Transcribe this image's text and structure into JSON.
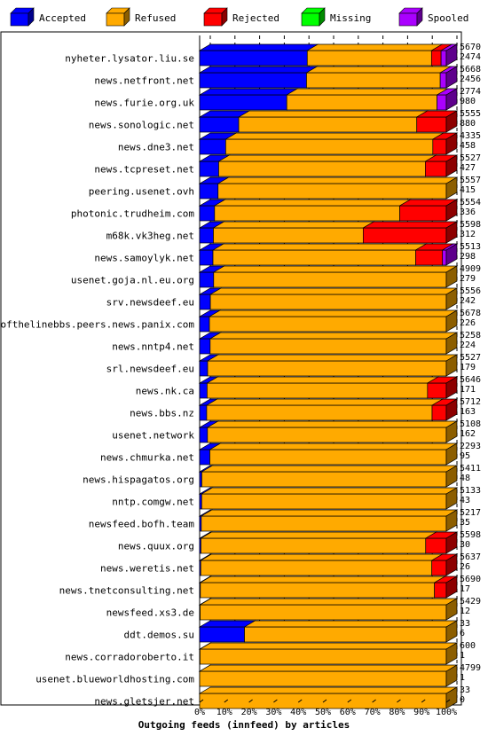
{
  "chart_data": {
    "type": "bar",
    "orientation": "horizontal",
    "stacked": true,
    "three_d": true,
    "xlabel": "Outgoing feeds (innfeed) by articles",
    "x_ticks": [
      "0%",
      "10%",
      "20%",
      "30%",
      "40%",
      "50%",
      "60%",
      "70%",
      "80%",
      "90%",
      "100%"
    ],
    "xlim": [
      0,
      100
    ],
    "legend_position": "top",
    "grid": "vertical dashed",
    "series": [
      {
        "name": "Accepted",
        "color": "#0000ff"
      },
      {
        "name": "Refused",
        "color": "#ffaa00"
      },
      {
        "name": "Rejected",
        "color": "#ff0000"
      },
      {
        "name": "Missing",
        "color": "#00ff00"
      },
      {
        "name": "Spooled",
        "color": "#aa00ff"
      }
    ],
    "rows": [
      {
        "label": "nyheter.lysator.liu.se",
        "offered": 5670,
        "accepted": 2474,
        "refused": 2856,
        "rejected": 220,
        "missing": 0,
        "spooled": 120
      },
      {
        "label": "news.netfront.net",
        "offered": 5668,
        "accepted": 2456,
        "refused": 3072,
        "rejected": 0,
        "missing": 0,
        "spooled": 140
      },
      {
        "label": "news.furie.org.uk",
        "offered": 2774,
        "accepted": 980,
        "refused": 1690,
        "rejected": 0,
        "missing": 0,
        "spooled": 104
      },
      {
        "label": "news.sonologic.net",
        "offered": 5555,
        "accepted": 880,
        "refused": 4010,
        "rejected": 665,
        "missing": 0,
        "spooled": 0
      },
      {
        "label": "news.dne3.net",
        "offered": 4335,
        "accepted": 458,
        "refused": 3640,
        "rejected": 237,
        "missing": 0,
        "spooled": 0
      },
      {
        "label": "news.tcpreset.net",
        "offered": 5527,
        "accepted": 427,
        "refused": 4630,
        "rejected": 470,
        "missing": 0,
        "spooled": 0
      },
      {
        "label": "peering.usenet.ovh",
        "offered": 5557,
        "accepted": 415,
        "refused": 5142,
        "rejected": 0,
        "missing": 0,
        "spooled": 0
      },
      {
        "label": "photonic.trudheim.com",
        "offered": 5554,
        "accepted": 336,
        "refused": 4170,
        "rejected": 1048,
        "missing": 0,
        "spooled": 0
      },
      {
        "label": "m68k.vk3heg.net",
        "offered": 5598,
        "accepted": 312,
        "refused": 3400,
        "rejected": 1886,
        "missing": 0,
        "spooled": 0
      },
      {
        "label": "news.samoylyk.net",
        "offered": 5513,
        "accepted": 298,
        "refused": 4530,
        "rejected": 600,
        "missing": 0,
        "spooled": 85
      },
      {
        "label": "usenet.goja.nl.eu.org",
        "offered": 4909,
        "accepted": 279,
        "refused": 4630,
        "rejected": 0,
        "missing": 0,
        "spooled": 0
      },
      {
        "label": "srv.newsdeef.eu",
        "offered": 5556,
        "accepted": 242,
        "refused": 5314,
        "rejected": 0,
        "missing": 0,
        "spooled": 0
      },
      {
        "label": "endofthelinebbs.peers.news.panix.com",
        "offered": 5678,
        "accepted": 226,
        "refused": 5452,
        "rejected": 0,
        "missing": 0,
        "spooled": 0
      },
      {
        "label": "news.nntp4.net",
        "offered": 5258,
        "accepted": 224,
        "refused": 5034,
        "rejected": 0,
        "missing": 0,
        "spooled": 0
      },
      {
        "label": "srl.newsdeef.eu",
        "offered": 5527,
        "accepted": 179,
        "refused": 5348,
        "rejected": 0,
        "missing": 0,
        "spooled": 0
      },
      {
        "label": "news.nk.ca",
        "offered": 5646,
        "accepted": 171,
        "refused": 5045,
        "rejected": 430,
        "missing": 0,
        "spooled": 0
      },
      {
        "label": "news.bbs.nz",
        "offered": 5712,
        "accepted": 163,
        "refused": 5220,
        "rejected": 329,
        "missing": 0,
        "spooled": 0
      },
      {
        "label": "usenet.network",
        "offered": 5108,
        "accepted": 162,
        "refused": 4946,
        "rejected": 0,
        "missing": 0,
        "spooled": 0
      },
      {
        "label": "news.chmurka.net",
        "offered": 2293,
        "accepted": 95,
        "refused": 2198,
        "rejected": 0,
        "missing": 0,
        "spooled": 0
      },
      {
        "label": "news.hispagatos.org",
        "offered": 5411,
        "accepted": 48,
        "refused": 5363,
        "rejected": 0,
        "missing": 0,
        "spooled": 0
      },
      {
        "label": "nntp.comgw.net",
        "offered": 5133,
        "accepted": 43,
        "refused": 5090,
        "rejected": 0,
        "missing": 0,
        "spooled": 0
      },
      {
        "label": "newsfeed.bofh.team",
        "offered": 5217,
        "accepted": 35,
        "refused": 5182,
        "rejected": 0,
        "missing": 0,
        "spooled": 0
      },
      {
        "label": "news.quux.org",
        "offered": 5598,
        "accepted": 30,
        "refused": 5100,
        "rejected": 468,
        "missing": 0,
        "spooled": 0
      },
      {
        "label": "news.weretis.net",
        "offered": 5637,
        "accepted": 26,
        "refused": 5280,
        "rejected": 331,
        "missing": 0,
        "spooled": 0
      },
      {
        "label": "news.tnetconsulting.net",
        "offered": 5690,
        "accepted": 17,
        "refused": 5400,
        "rejected": 273,
        "missing": 0,
        "spooled": 0
      },
      {
        "label": "newsfeed.xs3.de",
        "offered": 5429,
        "accepted": 12,
        "refused": 5417,
        "rejected": 0,
        "missing": 0,
        "spooled": 0
      },
      {
        "label": "ddt.demos.su",
        "offered": 33,
        "accepted": 6,
        "refused": 27,
        "rejected": 0,
        "missing": 0,
        "spooled": 0
      },
      {
        "label": "news.corradoroberto.it",
        "offered": 600,
        "accepted": 1,
        "refused": 599,
        "rejected": 0,
        "missing": 0,
        "spooled": 0
      },
      {
        "label": "usenet.blueworldhosting.com",
        "offered": 4799,
        "accepted": 1,
        "refused": 4798,
        "rejected": 0,
        "missing": 0,
        "spooled": 0
      },
      {
        "label": "news.gletsjer.net",
        "offered": 33,
        "accepted": 0,
        "refused": 33,
        "rejected": 0,
        "missing": 0,
        "spooled": 0
      }
    ]
  }
}
